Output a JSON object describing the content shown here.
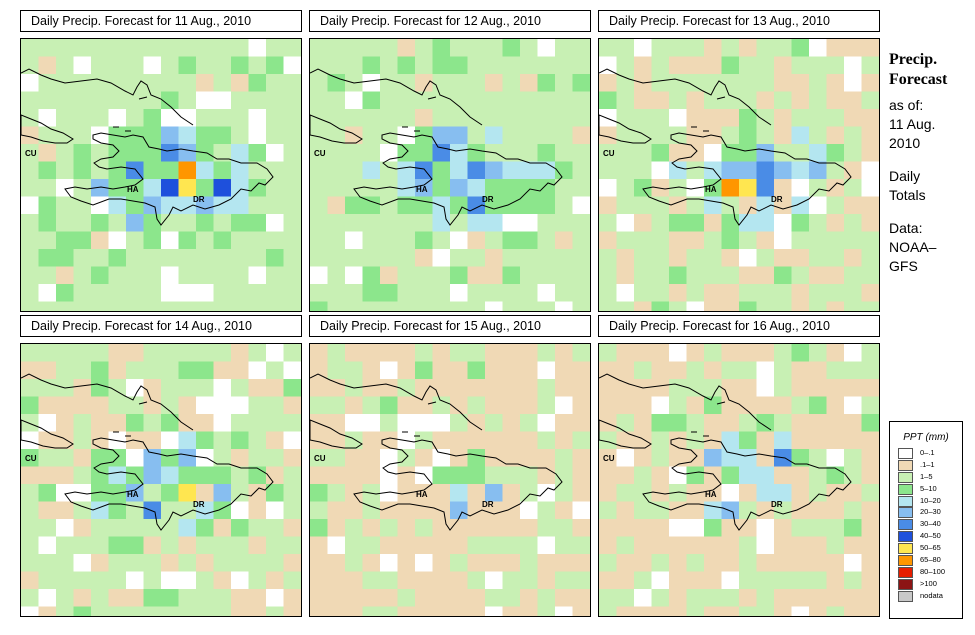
{
  "panels": [
    {
      "title": "Daily Precip. Forecast for  11 Aug., 2010",
      "wetness": 0.85,
      "peak": 2.2
    },
    {
      "title": "Daily Precip. Forecast for  12 Aug., 2010",
      "wetness": 0.8,
      "peak": 1.7
    },
    {
      "title": "Daily Precip. Forecast for  13 Aug., 2010",
      "wetness": 0.62,
      "peak": 1.5
    },
    {
      "title": "Daily Precip. Forecast for  14 Aug., 2010",
      "wetness": 0.62,
      "peak": 1.6
    },
    {
      "title": "Daily Precip. Forecast for  15 Aug., 2010",
      "wetness": 0.28,
      "peak": 1.3
    },
    {
      "title": "Daily Precip. Forecast for  16 Aug., 2010",
      "wetness": 0.35,
      "peak": 1.6
    }
  ],
  "map_labels": {
    "cuba": "CU",
    "haiti": "HA",
    "dominican_republic": "DR"
  },
  "sidebar": {
    "title_line1": "Precip.",
    "title_line2": "Forecast",
    "as_of": "as of:",
    "date_line1": "11 Aug.",
    "date_line2": "2010",
    "period_line1": "Daily",
    "period_line2": "Totals",
    "data_label": "Data:",
    "source_line1": "NOAA–",
    "source_line2": "GFS"
  },
  "legend": {
    "title": "PPT (mm)",
    "items": [
      {
        "label": "0–.1",
        "color": "#ffffff"
      },
      {
        "label": ".1–1",
        "color": "#f0d9b5"
      },
      {
        "label": "1–5",
        "color": "#c8f0b4"
      },
      {
        "label": "5–10",
        "color": "#8ce68c"
      },
      {
        "label": "10–20",
        "color": "#b4e6f0"
      },
      {
        "label": "20–30",
        "color": "#87bef0"
      },
      {
        "label": "30–40",
        "color": "#4a8ce6"
      },
      {
        "label": "40–50",
        "color": "#1e50dc"
      },
      {
        "label": "50–65",
        "color": "#ffe650"
      },
      {
        "label": "65–80",
        "color": "#ff9600"
      },
      {
        "label": "80–100",
        "color": "#e61e00"
      },
      {
        "label": ">100",
        "color": "#8c1414"
      },
      {
        "label": "nodata",
        "color": "#c8c8c8"
      }
    ]
  }
}
